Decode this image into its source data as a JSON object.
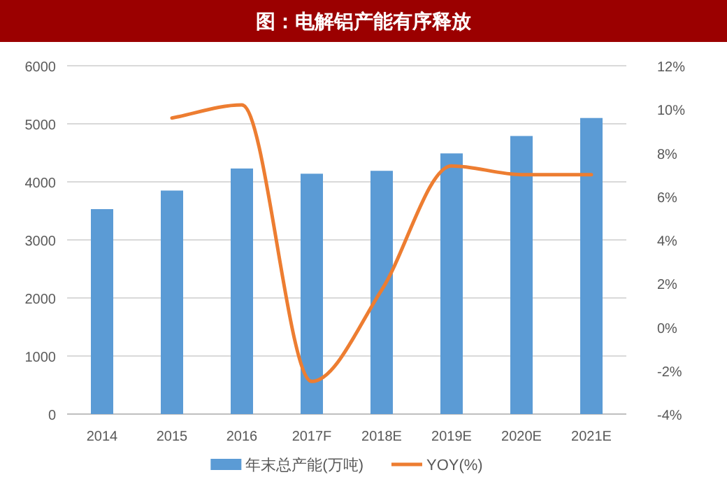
{
  "chart_data": {
    "type": "bar",
    "title": "图：电解铝产能有序释放",
    "categories": [
      "2014",
      "2015",
      "2016",
      "2017F",
      "2018E",
      "2019E",
      "2020E",
      "2021E"
    ],
    "series": [
      {
        "name": "年末总产能(万吨)",
        "color": "#5b9bd5",
        "values": [
          3530,
          3850,
          4230,
          4140,
          4190,
          4490,
          4790,
          5100
        ]
      },
      {
        "name": "YOY(%)",
        "type": "line",
        "axis": "y2",
        "color": "#ed7d31",
        "values": [
          null,
          9.6,
          10.2,
          -2.5,
          1.7,
          7.4,
          7.0,
          7.0
        ]
      }
    ],
    "ylim": [
      0,
      6000
    ],
    "yticks": [
      0,
      1000,
      2000,
      3000,
      4000,
      5000,
      6000
    ],
    "y2lim": [
      -4,
      12
    ],
    "y2ticks": [
      {
        "value": -4,
        "label": "-4%"
      },
      {
        "value": -2,
        "label": "-2%"
      },
      {
        "value": 0,
        "label": "0%"
      },
      {
        "value": 2,
        "label": "2%"
      },
      {
        "value": 4,
        "label": "4%"
      },
      {
        "value": 6,
        "label": "6%"
      },
      {
        "value": 8,
        "label": "8%"
      },
      {
        "value": 10,
        "label": "10%"
      },
      {
        "value": 12,
        "label": "12%"
      }
    ],
    "grid": "y",
    "legend": "bottom"
  }
}
